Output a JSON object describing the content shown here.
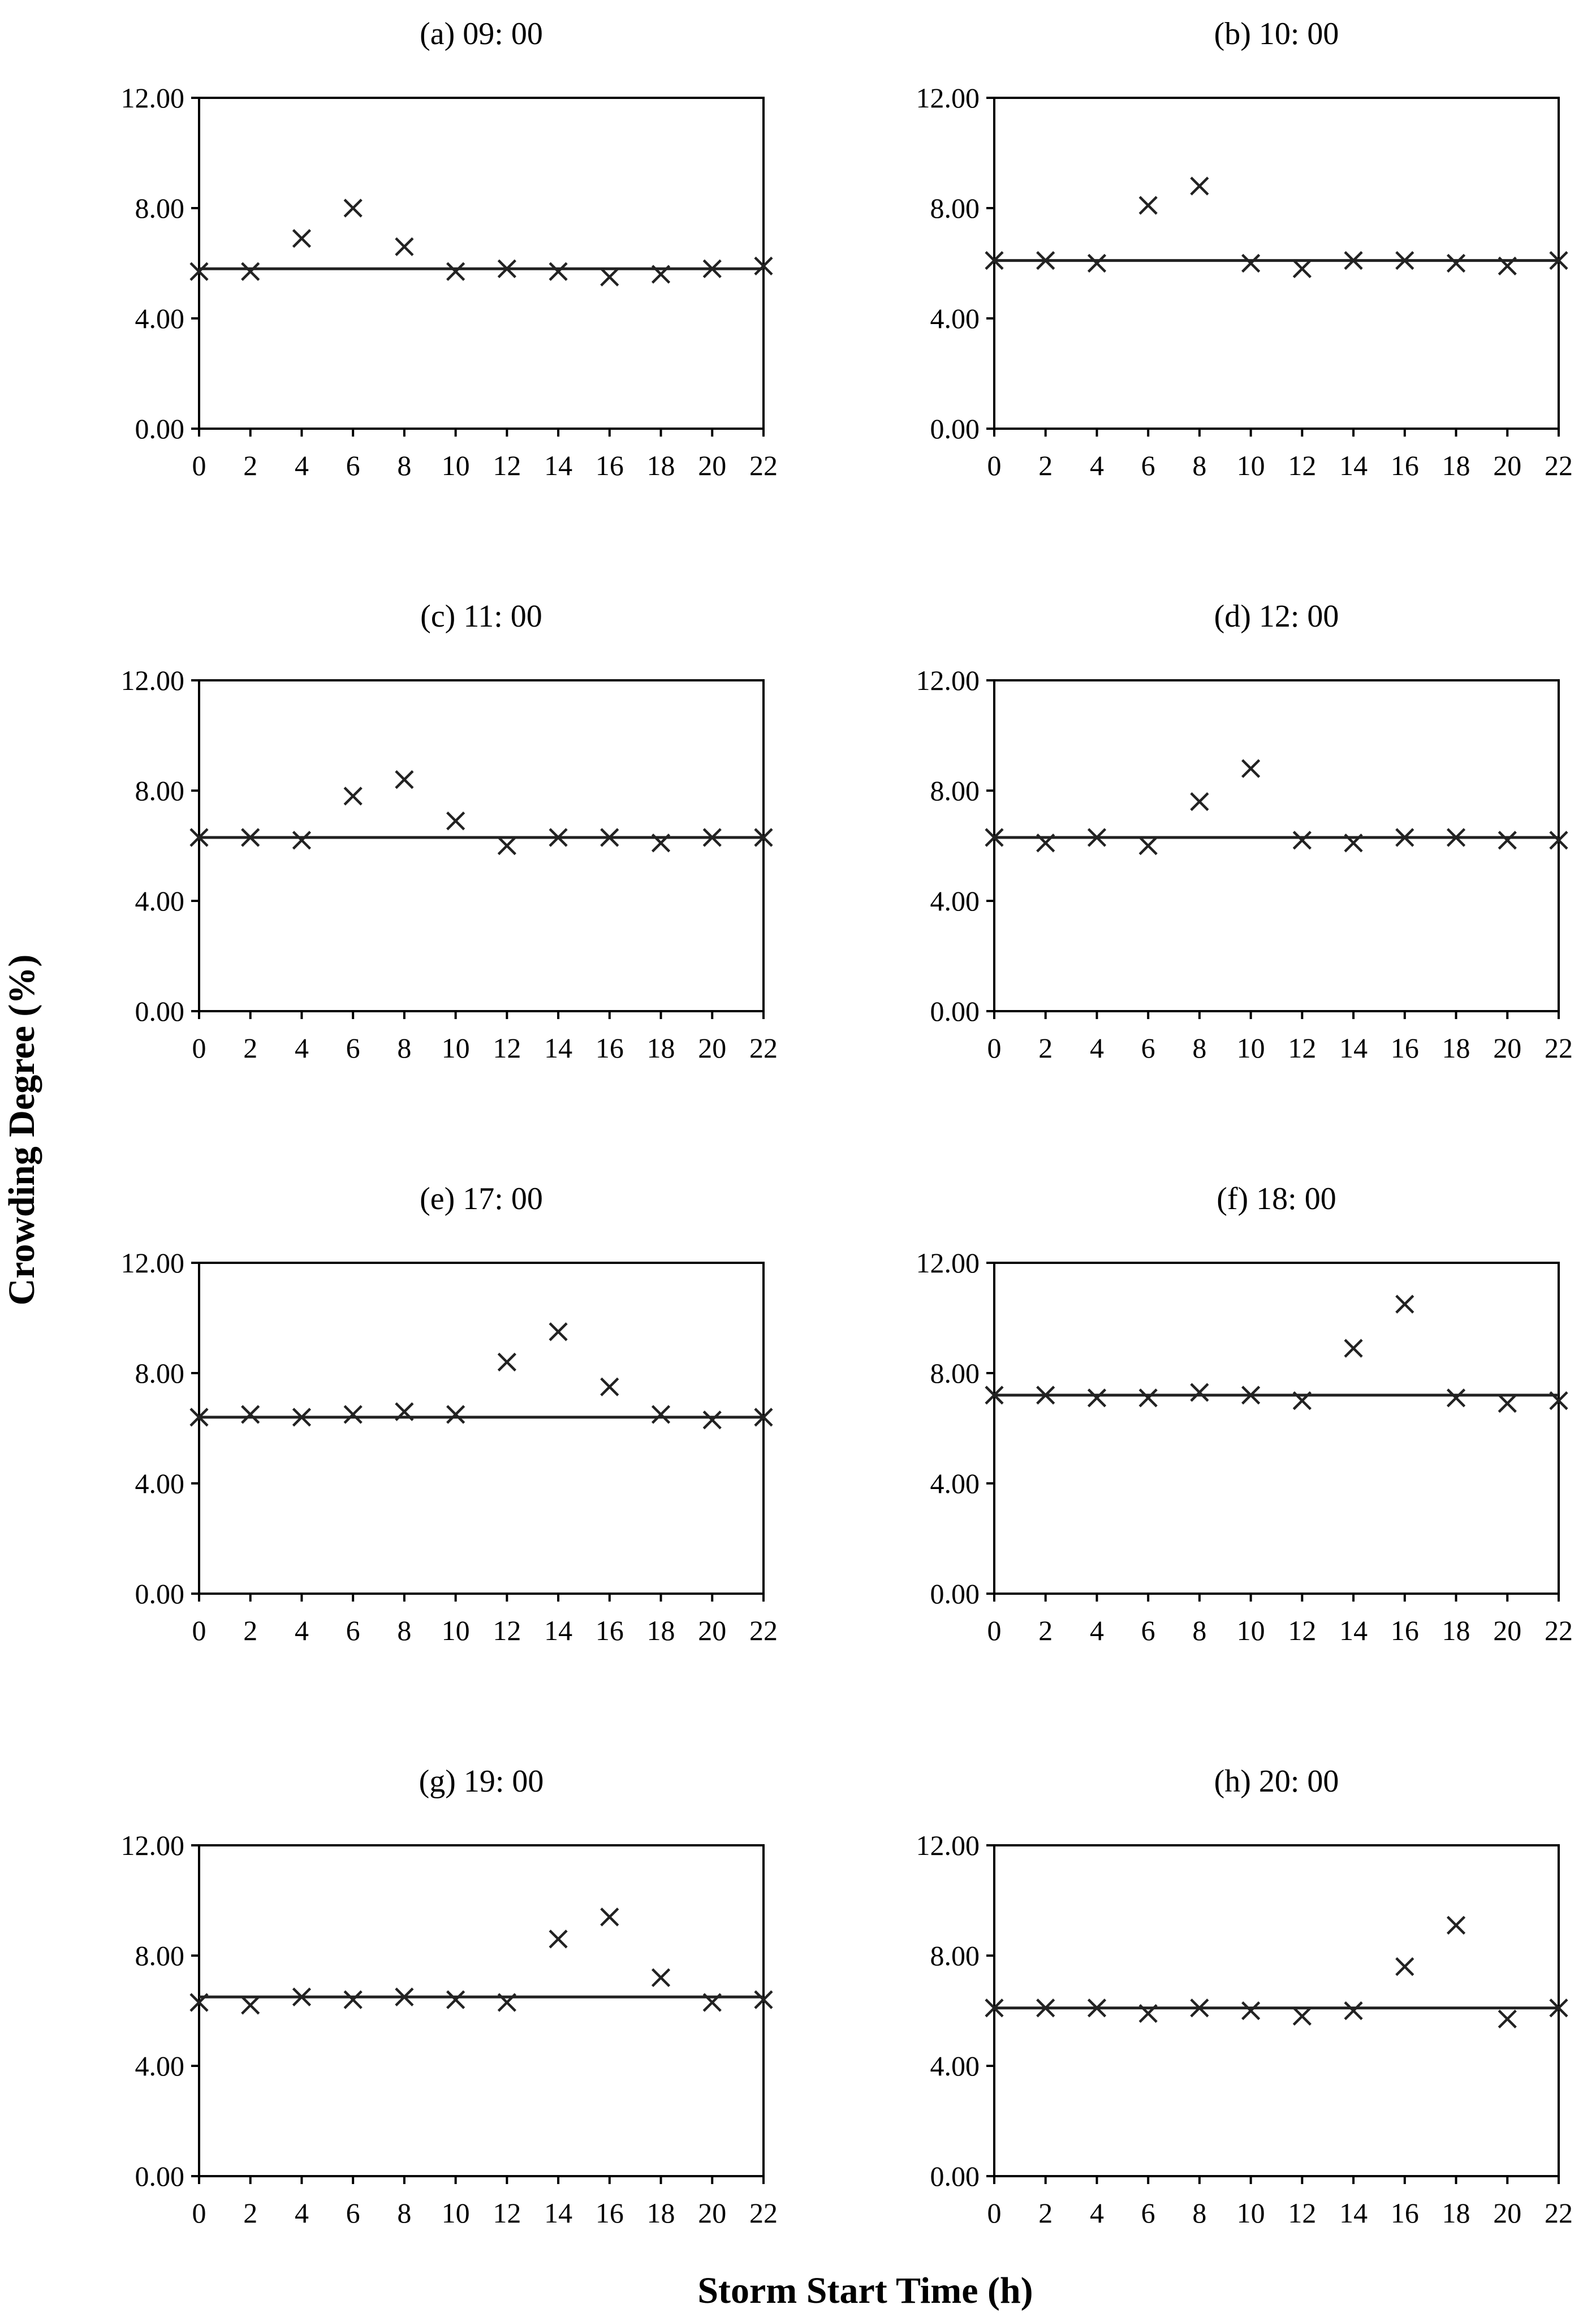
{
  "figure": {
    "ylabel": "Crowding Degree (%)",
    "xlabel": "Storm Start Time (h)"
  },
  "chart_data": [
    {
      "type": "scatter",
      "title": "(a) 09: 00",
      "x": [
        0,
        2,
        4,
        6,
        8,
        10,
        12,
        14,
        16,
        18,
        20,
        22
      ],
      "xticks": [
        "0",
        "2",
        "4",
        "6",
        "8",
        "10",
        "12",
        "14",
        "16",
        "18",
        "20",
        "22"
      ],
      "xlim": [
        0,
        22
      ],
      "ylim": [
        0,
        12
      ],
      "yticks": [
        "0.00",
        "4.00",
        "8.00",
        "12.00"
      ],
      "values": [
        5.7,
        5.7,
        6.9,
        8.0,
        6.6,
        5.7,
        5.8,
        5.7,
        5.5,
        5.6,
        5.8,
        5.9
      ],
      "baseline": 5.8
    },
    {
      "type": "scatter",
      "title": "(b) 10: 00",
      "x": [
        0,
        2,
        4,
        6,
        8,
        10,
        12,
        14,
        16,
        18,
        20,
        22
      ],
      "xticks": [
        "0",
        "2",
        "4",
        "6",
        "8",
        "10",
        "12",
        "14",
        "16",
        "18",
        "20",
        "22"
      ],
      "xlim": [
        0,
        22
      ],
      "ylim": [
        0,
        12
      ],
      "yticks": [
        "0.00",
        "4.00",
        "8.00",
        "12.00"
      ],
      "values": [
        6.1,
        6.1,
        6.0,
        8.1,
        8.8,
        6.0,
        5.8,
        6.1,
        6.1,
        6.0,
        5.9,
        6.1
      ],
      "baseline": 6.1
    },
    {
      "type": "scatter",
      "title": "(c) 11: 00",
      "x": [
        0,
        2,
        4,
        6,
        8,
        10,
        12,
        14,
        16,
        18,
        20,
        22
      ],
      "xticks": [
        "0",
        "2",
        "4",
        "6",
        "8",
        "10",
        "12",
        "14",
        "16",
        "18",
        "20",
        "22"
      ],
      "xlim": [
        0,
        22
      ],
      "ylim": [
        0,
        12
      ],
      "yticks": [
        "0.00",
        "4.00",
        "8.00",
        "12.00"
      ],
      "values": [
        6.3,
        6.3,
        6.2,
        7.8,
        8.4,
        6.9,
        6.0,
        6.3,
        6.3,
        6.1,
        6.3,
        6.3
      ],
      "baseline": 6.3
    },
    {
      "type": "scatter",
      "title": "(d) 12: 00",
      "x": [
        0,
        2,
        4,
        6,
        8,
        10,
        12,
        14,
        16,
        18,
        20,
        22
      ],
      "xticks": [
        "0",
        "2",
        "4",
        "6",
        "8",
        "10",
        "12",
        "14",
        "16",
        "18",
        "20",
        "22"
      ],
      "xlim": [
        0,
        22
      ],
      "ylim": [
        0,
        12
      ],
      "yticks": [
        "0.00",
        "4.00",
        "8.00",
        "12.00"
      ],
      "values": [
        6.3,
        6.1,
        6.3,
        6.0,
        7.6,
        8.8,
        6.2,
        6.1,
        6.3,
        6.3,
        6.2,
        6.2
      ],
      "baseline": 6.3
    },
    {
      "type": "scatter",
      "title": "(e) 17: 00",
      "x": [
        0,
        2,
        4,
        6,
        8,
        10,
        12,
        14,
        16,
        18,
        20,
        22
      ],
      "xticks": [
        "0",
        "2",
        "4",
        "6",
        "8",
        "10",
        "12",
        "14",
        "16",
        "18",
        "20",
        "22"
      ],
      "xlim": [
        0,
        22
      ],
      "ylim": [
        0,
        12
      ],
      "yticks": [
        "0.00",
        "4.00",
        "8.00",
        "12.00"
      ],
      "values": [
        6.4,
        6.5,
        6.4,
        6.5,
        6.6,
        6.5,
        8.4,
        9.5,
        7.5,
        6.5,
        6.3,
        6.4
      ],
      "baseline": 6.4
    },
    {
      "type": "scatter",
      "title": "(f) 18: 00",
      "x": [
        0,
        2,
        4,
        6,
        8,
        10,
        12,
        14,
        16,
        18,
        20,
        22
      ],
      "xticks": [
        "0",
        "2",
        "4",
        "6",
        "8",
        "10",
        "12",
        "14",
        "16",
        "18",
        "20",
        "22"
      ],
      "xlim": [
        0,
        22
      ],
      "ylim": [
        0,
        12
      ],
      "yticks": [
        "0.00",
        "4.00",
        "8.00",
        "12.00"
      ],
      "values": [
        7.2,
        7.2,
        7.1,
        7.1,
        7.3,
        7.2,
        7.0,
        8.9,
        10.5,
        7.1,
        6.9,
        7.0
      ],
      "baseline": 7.2
    },
    {
      "type": "scatter",
      "title": "(g) 19: 00",
      "x": [
        0,
        2,
        4,
        6,
        8,
        10,
        12,
        14,
        16,
        18,
        20,
        22
      ],
      "xticks": [
        "0",
        "2",
        "4",
        "6",
        "8",
        "10",
        "12",
        "14",
        "16",
        "18",
        "20",
        "22"
      ],
      "xlim": [
        0,
        22
      ],
      "ylim": [
        0,
        12
      ],
      "yticks": [
        "0.00",
        "4.00",
        "8.00",
        "12.00"
      ],
      "values": [
        6.3,
        6.2,
        6.5,
        6.4,
        6.5,
        6.4,
        6.3,
        8.6,
        9.4,
        7.2,
        6.3,
        6.4
      ],
      "baseline": 6.5
    },
    {
      "type": "scatter",
      "title": "(h) 20: 00",
      "x": [
        0,
        2,
        4,
        6,
        8,
        10,
        12,
        14,
        16,
        18,
        20,
        22
      ],
      "xticks": [
        "0",
        "2",
        "4",
        "6",
        "8",
        "10",
        "12",
        "14",
        "16",
        "18",
        "20",
        "22"
      ],
      "xlim": [
        0,
        22
      ],
      "ylim": [
        0,
        12
      ],
      "yticks": [
        "0.00",
        "4.00",
        "8.00",
        "12.00"
      ],
      "values": [
        6.1,
        6.1,
        6.1,
        5.9,
        6.1,
        6.0,
        5.8,
        6.0,
        7.6,
        9.1,
        5.7,
        6.1
      ],
      "baseline": 6.1
    }
  ]
}
